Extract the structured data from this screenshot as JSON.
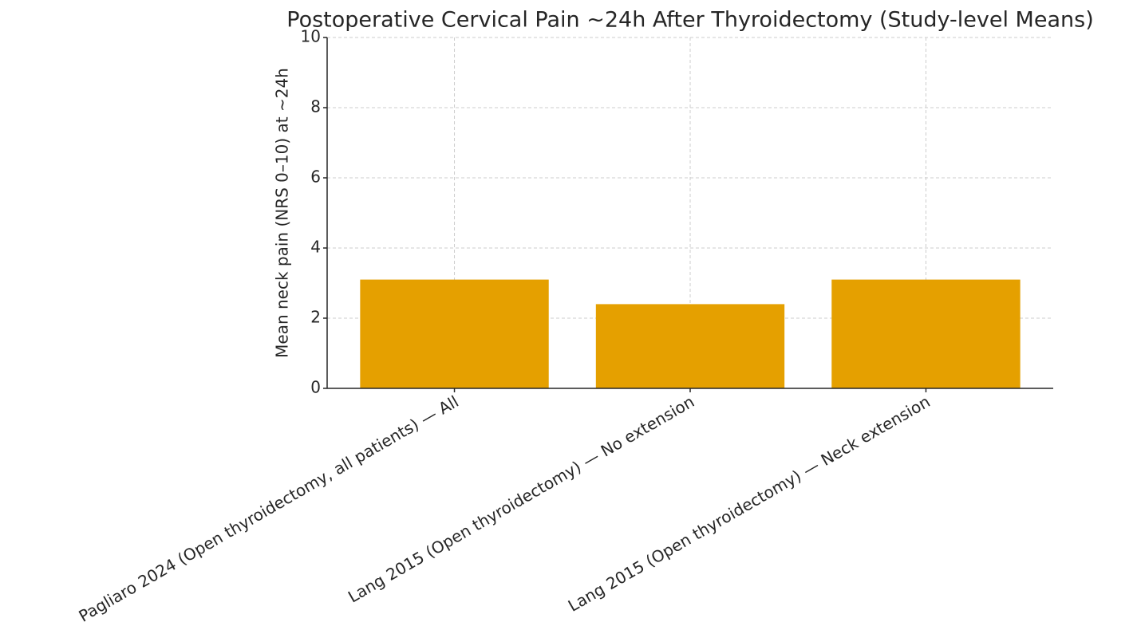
{
  "chart_data": {
    "type": "bar",
    "title": "Postoperative Cervical Pain ~24h After Thyroidectomy (Study-level Means)",
    "y_label": "Mean neck pain (NRS 0–10) at ~24h",
    "categories": [
      "Pagliaro 2024 (Open thyroidectomy, all patients) — All",
      "Lang 2015 (Open thyroidectomy) — No extension",
      "Lang 2015 (Open thyroidectomy) — Neck extension"
    ],
    "values": [
      3.1,
      2.4,
      3.1
    ],
    "color": "#e5a000",
    "ylim": [
      0,
      10
    ],
    "yticks": [
      0,
      2,
      4,
      6,
      8,
      10
    ],
    "grid": true
  }
}
